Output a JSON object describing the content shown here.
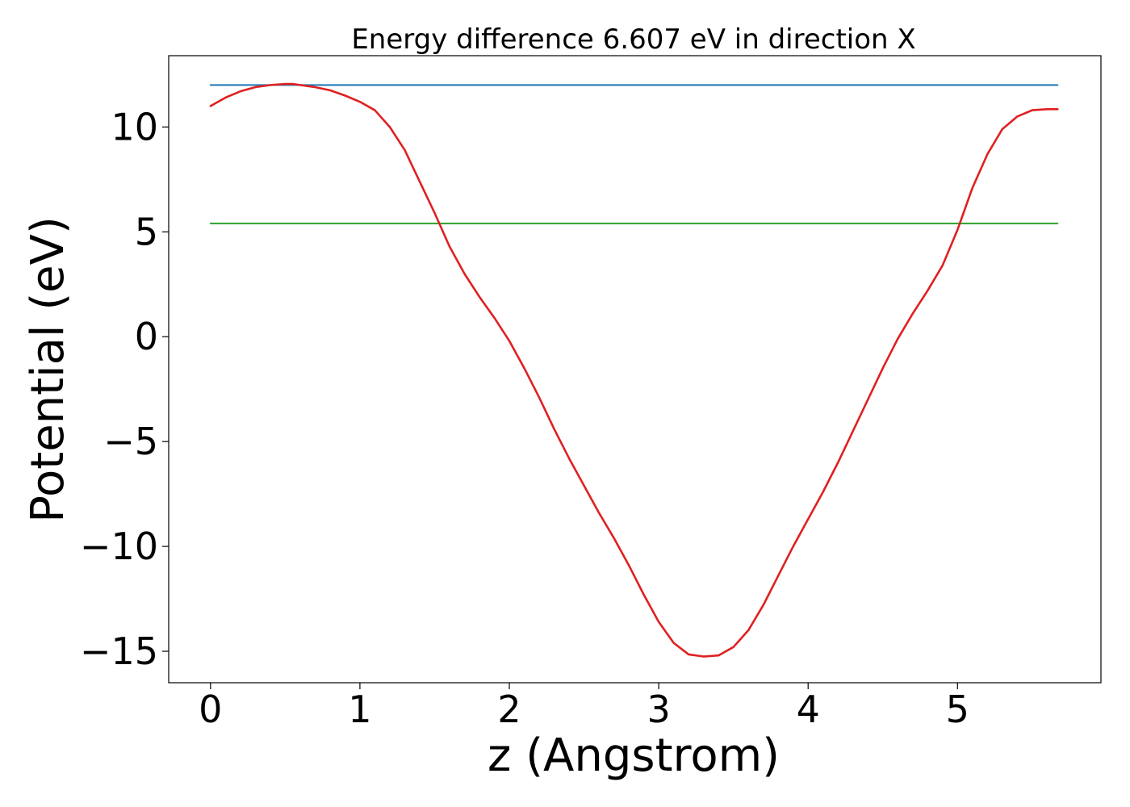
{
  "chart_data": {
    "type": "line",
    "title": "Energy difference 6.607 eV in direction X",
    "xlabel": "z (Angstrom)",
    "ylabel": "Potential (eV)",
    "xlim": [
      -0.28,
      5.96
    ],
    "ylim": [
      -16.5,
      13.4
    ],
    "xticks": [
      0,
      1,
      2,
      3,
      4,
      5
    ],
    "xtick_labels": [
      "0",
      "1",
      "2",
      "3",
      "4",
      "5"
    ],
    "yticks": [
      -15,
      -10,
      -5,
      0,
      5,
      10
    ],
    "ytick_labels": [
      "−15",
      "−10",
      "−5",
      "0",
      "5",
      "10"
    ],
    "grid": false,
    "series": [
      {
        "color": "#1f77b4",
        "x": [
          0,
          5.67
        ],
        "y": [
          12.0,
          12.0
        ]
      },
      {
        "color": "#2ca02c",
        "x": [
          0,
          5.67
        ],
        "y": [
          5.4,
          5.4
        ]
      },
      {
        "color": "#e02020",
        "x": [
          0,
          0.1,
          0.2,
          0.3,
          0.4,
          0.5,
          0.55,
          0.6,
          0.7,
          0.8,
          0.9,
          1.0,
          1.1,
          1.2,
          1.3,
          1.4,
          1.5,
          1.6,
          1.7,
          1.8,
          1.9,
          2.0,
          2.1,
          2.2,
          2.3,
          2.4,
          2.5,
          2.6,
          2.7,
          2.8,
          2.9,
          3.0,
          3.1,
          3.2,
          3.3,
          3.4,
          3.5,
          3.6,
          3.7,
          3.8,
          3.9,
          4.0,
          4.1,
          4.2,
          4.3,
          4.4,
          4.5,
          4.6,
          4.7,
          4.8,
          4.9,
          5.0,
          5.1,
          5.2,
          5.3,
          5.4,
          5.5,
          5.6,
          5.67
        ],
        "y": [
          11.0,
          11.4,
          11.7,
          11.9,
          12.0,
          12.05,
          12.05,
          12.0,
          11.9,
          11.75,
          11.5,
          11.2,
          10.8,
          10.0,
          8.9,
          7.4,
          5.9,
          4.3,
          3.0,
          1.9,
          0.9,
          -0.2,
          -1.5,
          -2.9,
          -4.4,
          -5.8,
          -7.1,
          -8.4,
          -9.6,
          -10.9,
          -12.3,
          -13.6,
          -14.6,
          -15.15,
          -15.25,
          -15.2,
          -14.8,
          -14.0,
          -12.8,
          -11.4,
          -10.0,
          -8.7,
          -7.4,
          -6.0,
          -4.5,
          -3.0,
          -1.5,
          -0.1,
          1.1,
          2.2,
          3.4,
          5.1,
          7.1,
          8.7,
          9.9,
          10.5,
          10.8,
          10.85,
          10.85
        ]
      }
    ]
  }
}
